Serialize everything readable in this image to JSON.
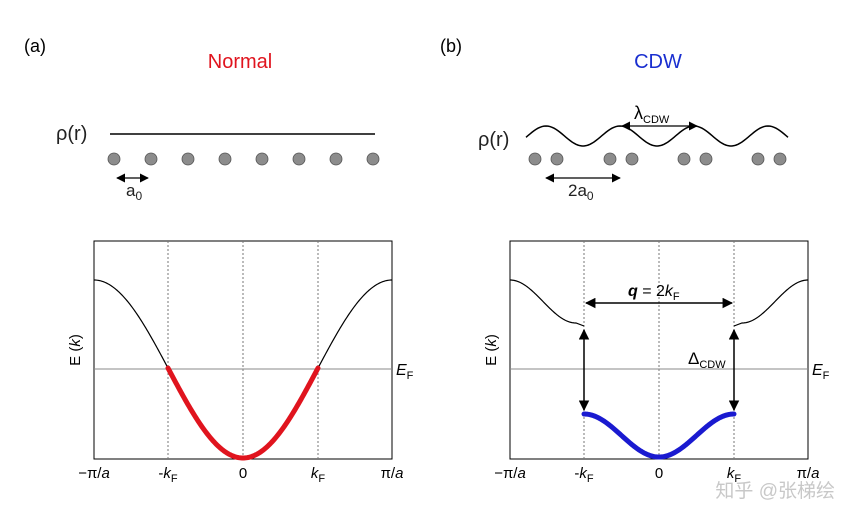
{
  "panel_a": {
    "label": "(a)",
    "title": "Normal",
    "title_color": "#e0141e",
    "rho_label": "ρ(r)",
    "spacing_label": "a",
    "spacing_sub": "0",
    "atom_count": 8,
    "axis": {
      "ylabel_prefix": "E (",
      "ylabel_var": "k",
      "ylabel_suffix": ")",
      "ef_main": "E",
      "ef_sub": "F",
      "ticks": [
        "−π/a",
        "-kF",
        "0",
        "kF",
        "π/a"
      ]
    },
    "filled_band_color": "#e0141e"
  },
  "panel_b": {
    "label": "(b)",
    "title": "CDW",
    "title_color": "#1a2fd0",
    "rho_label": "ρ(r)",
    "lambda_main": "λ",
    "lambda_sub": "CDW",
    "spacing_label": "2a",
    "spacing_sub": "0",
    "q_bold": "q",
    "q_eq": " = 2",
    "q_var": "k",
    "q_sub": "F",
    "delta_main": "Δ",
    "delta_sub": "CDW",
    "axis": {
      "ylabel_prefix": "E (",
      "ylabel_var": "k",
      "ylabel_suffix": ")",
      "ef_main": "E",
      "ef_sub": "F",
      "ticks": [
        "−π/a",
        "-kF",
        "0",
        "kF",
        "π/a"
      ]
    },
    "filled_band_color": "#1a1ad0"
  },
  "watermark": "知乎 @张梯绘"
}
